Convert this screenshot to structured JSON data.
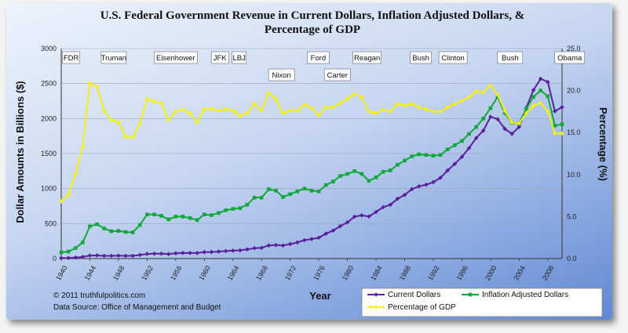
{
  "chart_data": {
    "type": "line",
    "title_line1": "U.S. Federal Government Revenue in Current Dollars, Inflation Adjusted Dollars, &",
    "title_line2": "Percentage of GDP",
    "xlabel": "Year",
    "ylabel_left": "Dollar Amounts in Billions ($)",
    "ylabel_right": "Percentage (%)",
    "xlim": [
      1940,
      2010
    ],
    "ylim_left": [
      0,
      3000
    ],
    "ylim_right": [
      0,
      25
    ],
    "x_ticks": [
      "1940",
      "1944",
      "1948",
      "1952",
      "1956",
      "1960",
      "1964",
      "1968",
      "1972",
      "1976",
      "1980",
      "1984",
      "1988",
      "1992",
      "1996",
      "2000",
      "2004",
      "2008"
    ],
    "y_ticks_left": [
      "0",
      "500",
      "1000",
      "1500",
      "2000",
      "2500",
      "3000"
    ],
    "y_ticks_right": [
      "0.0",
      "5.0",
      "10.0",
      "15.0",
      "20.0",
      "25.0"
    ],
    "grid": "horizontal",
    "legend_placement": "bottom-right",
    "x": [
      1940,
      1941,
      1942,
      1943,
      1944,
      1945,
      1946,
      1947,
      1948,
      1949,
      1950,
      1951,
      1952,
      1953,
      1954,
      1955,
      1956,
      1957,
      1958,
      1959,
      1960,
      1961,
      1962,
      1963,
      1964,
      1965,
      1966,
      1967,
      1968,
      1969,
      1970,
      1971,
      1972,
      1973,
      1974,
      1975,
      1976,
      1977,
      1978,
      1979,
      1980,
      1981,
      1982,
      1983,
      1984,
      1985,
      1986,
      1987,
      1988,
      1989,
      1990,
      1991,
      1992,
      1993,
      1994,
      1995,
      1996,
      1997,
      1998,
      1999,
      2000,
      2001,
      2002,
      2003,
      2004,
      2005,
      2006,
      2007,
      2008,
      2009,
      2010
    ],
    "series": [
      {
        "name": "Current Dollars",
        "axis": "left",
        "color": "#5b1f9a",
        "marker": "diamond",
        "values": [
          7,
          9,
          15,
          24,
          44,
          45,
          39,
          39,
          42,
          39,
          39,
          52,
          66,
          70,
          70,
          65,
          75,
          80,
          80,
          79,
          93,
          94,
          100,
          107,
          113,
          117,
          131,
          149,
          153,
          187,
          193,
          187,
          207,
          231,
          263,
          279,
          298,
          356,
          400,
          463,
          517,
          599,
          618,
          601,
          666,
          734,
          769,
          854,
          909,
          991,
          1032,
          1055,
          1091,
          1154,
          1259,
          1352,
          1453,
          1579,
          1722,
          1828,
          2025,
          1991,
          1853,
          1782,
          1880,
          2154,
          2407,
          2568,
          2524,
          2105,
          2163
        ]
      },
      {
        "name": "Inflation Adjusted Dollars",
        "axis": "left",
        "color": "#11a83a",
        "marker": "square",
        "values": [
          90,
          100,
          150,
          230,
          460,
          490,
          430,
          390,
          395,
          380,
          375,
          480,
          630,
          630,
          610,
          560,
          600,
          600,
          580,
          550,
          630,
          620,
          650,
          690,
          710,
          720,
          770,
          870,
          870,
          990,
          970,
          880,
          920,
          960,
          1000,
          970,
          960,
          1050,
          1100,
          1180,
          1210,
          1250,
          1210,
          1110,
          1160,
          1240,
          1260,
          1340,
          1400,
          1460,
          1490,
          1480,
          1470,
          1480,
          1560,
          1620,
          1680,
          1780,
          1880,
          2000,
          2150,
          2310,
          2080,
          1940,
          1930,
          2140,
          2310,
          2400,
          2320,
          1900,
          1920
        ]
      },
      {
        "name": "Percentage of GDP",
        "axis": "right",
        "color": "#f5f010",
        "marker": "diamond",
        "values": [
          6.8,
          7.6,
          10.1,
          13.3,
          20.9,
          20.4,
          17.6,
          16.5,
          16.2,
          14.5,
          14.4,
          16.1,
          19.0,
          18.7,
          18.5,
          16.5,
          17.5,
          17.7,
          17.3,
          16.2,
          17.8,
          17.8,
          17.6,
          17.8,
          17.6,
          17.0,
          17.3,
          18.4,
          17.6,
          19.7,
          19.0,
          17.3,
          17.6,
          17.6,
          18.3,
          17.9,
          17.1,
          18.0,
          18.0,
          18.5,
          19.0,
          19.6,
          19.2,
          17.5,
          17.3,
          17.7,
          17.5,
          18.4,
          18.2,
          18.4,
          18.0,
          17.8,
          17.5,
          17.5,
          18.0,
          18.4,
          18.8,
          19.2,
          19.9,
          19.8,
          20.6,
          19.5,
          17.6,
          16.2,
          16.1,
          17.3,
          18.2,
          18.5,
          17.5,
          14.9,
          14.9
        ]
      }
    ],
    "presidents": [
      {
        "name": "FDR",
        "row": 0
      },
      {
        "name": "Truman",
        "row": 0
      },
      {
        "name": "Eisenhower",
        "row": 0
      },
      {
        "name": "JFK",
        "row": 0
      },
      {
        "name": "LBJ",
        "row": 0
      },
      {
        "name": "Nixon",
        "row": 1
      },
      {
        "name": "Ford",
        "row": 0
      },
      {
        "name": "Carter",
        "row": 1
      },
      {
        "name": "Reagan",
        "row": 0
      },
      {
        "name": "Bush",
        "row": 0
      },
      {
        "name": "Clinton",
        "row": 0
      },
      {
        "name": "Bush",
        "row": 0
      },
      {
        "name": "Obama",
        "row": 0
      }
    ]
  },
  "footer": {
    "copyright": "© 2011  truthfulpolitics.com",
    "source": "Data Source:  Office of Management and Budget"
  }
}
